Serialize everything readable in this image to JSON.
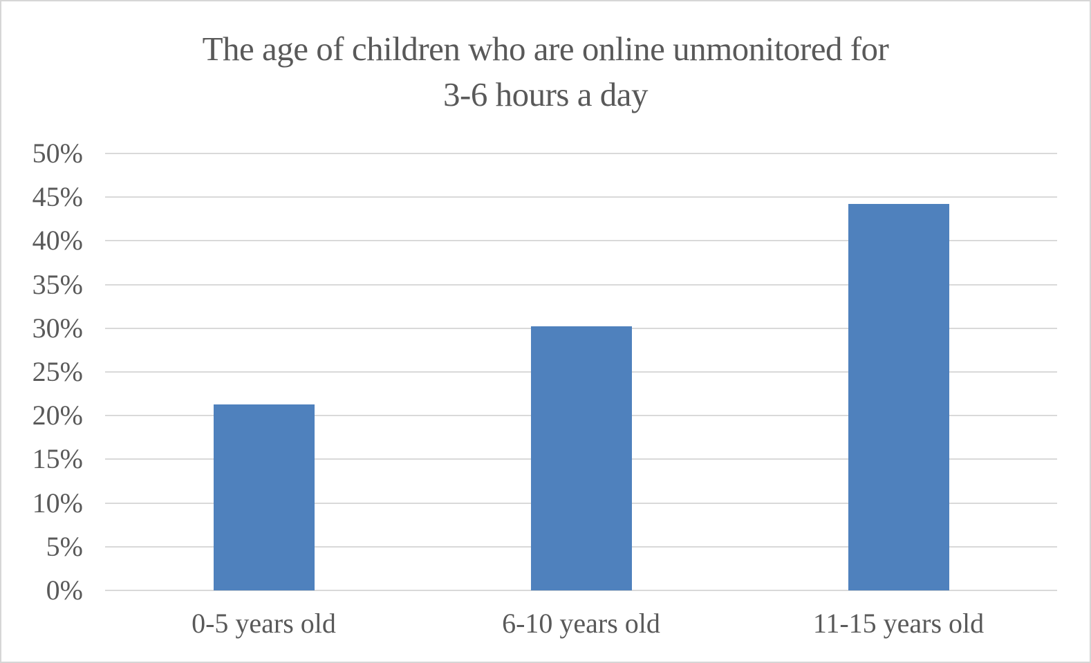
{
  "chart_data": {
    "type": "bar",
    "title": "The age of children who are online unmonitored for 3-6 hours a day",
    "title_lines": [
      "The age of children who are online unmonitored for",
      "3-6 hours a day"
    ],
    "categories": [
      "0-5 years old",
      "6-10 years old",
      "11-15 years old"
    ],
    "values": [
      21.3,
      30.2,
      44.2
    ],
    "unit": "%",
    "xlabel": "",
    "ylabel": "",
    "ylim": [
      0,
      50
    ],
    "yticks": [
      0,
      5,
      10,
      15,
      20,
      25,
      30,
      35,
      40,
      45,
      50
    ],
    "ytick_labels": [
      "0%",
      "5%",
      "10%",
      "15%",
      "20%",
      "25%",
      "30%",
      "35%",
      "40%",
      "45%",
      "50%"
    ],
    "grid": true,
    "legend": false,
    "series_count": 1
  },
  "colors": {
    "bar": "#4F81BD",
    "gridline": "#D9D9D9",
    "text": "#595959",
    "border": "#D6D6D6",
    "background": "#FFFFFF"
  }
}
